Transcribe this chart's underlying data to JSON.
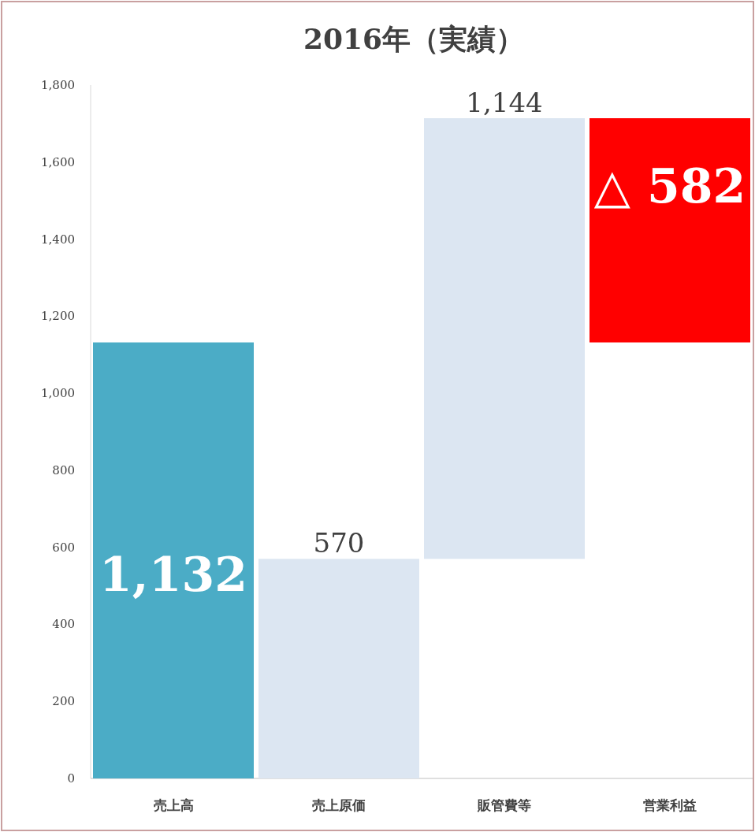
{
  "chart_data": {
    "type": "bar",
    "title": "2016年（実績）",
    "categories": [
      "売上高",
      "売上原価",
      "販管費等",
      "営業利益"
    ],
    "values": [
      1132,
      570,
      1144,
      -582
    ],
    "base": [
      0,
      0,
      570,
      1714
    ],
    "colors": [
      "#4bacc6",
      "#dce6f2",
      "#dce6f2",
      "#ff0000"
    ],
    "value_labels": [
      "1,132",
      "570",
      "1,144",
      "△ 582"
    ],
    "ylim": [
      0,
      1800
    ],
    "yticks": [
      0,
      {
        "value": 200,
        "label": "200"
      },
      {
        "value": 400,
        "label": "400"
      },
      {
        "value": 600,
        "label": "600"
      },
      {
        "value": 800,
        "label": "800"
      },
      {
        "value": 1000,
        "label": "1,000"
      },
      {
        "value": 1200,
        "label": "1,200"
      },
      {
        "value": 1400,
        "label": "1,400"
      },
      {
        "value": 1600,
        "label": "1,600"
      },
      {
        "value": 1800,
        "label": "1,800"
      }
    ]
  }
}
